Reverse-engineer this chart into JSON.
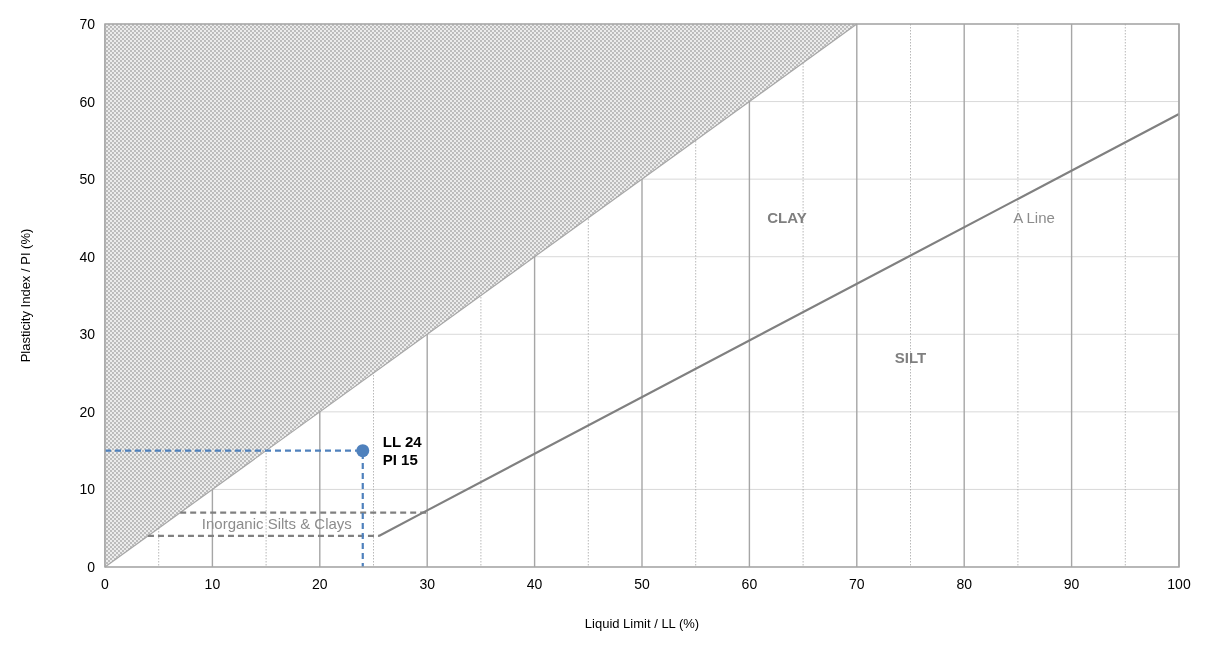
{
  "chart_data": {
    "type": "line",
    "xlabel": "Liquid Limit / LL (%)",
    "ylabel": "Plasticity Index / PI (%)",
    "xlim": [
      0,
      100
    ],
    "ylim": [
      0,
      70
    ],
    "xticks": [
      0,
      {
        "value": 5,
        "label": null
      },
      10,
      {
        "value": 15,
        "label": null
      },
      20,
      {
        "value": 25,
        "label": null
      },
      30,
      {
        "value": 35,
        "label": null
      },
      40,
      {
        "value": 45,
        "label": null
      },
      50,
      {
        "value": 55,
        "label": null
      },
      60,
      {
        "value": 65,
        "label": null
      },
      70,
      {
        "value": 75,
        "label": null
      },
      80,
      {
        "value": 85,
        "label": null
      },
      90,
      {
        "value": 95,
        "label": null
      },
      100
    ],
    "yticks": [
      0,
      10,
      20,
      30,
      40,
      50,
      60,
      70
    ],
    "grid": true,
    "series": [
      {
        "type": "area",
        "color": "#a6a6a6",
        "x": [
          0,
          70
        ],
        "values": [
          0,
          70
        ]
      },
      {
        "color": "#808080",
        "x": [
          25.5,
          30,
          100
        ],
        "values": [
          4,
          7.3,
          58.4
        ],
        "line_style": "solid"
      },
      {
        "color": "#808080",
        "x": [
          4,
          25.5
        ],
        "values": [
          4,
          4
        ],
        "line_style": "dashed"
      },
      {
        "color": "#808080",
        "x": [
          7,
          30
        ],
        "values": [
          7,
          7
        ],
        "line_style": "dashed"
      },
      {
        "color": "#4f81bd",
        "x": [
          0,
          24,
          24
        ],
        "values": [
          15,
          15,
          0
        ],
        "line_style": "dashed"
      },
      {
        "type": "scatter",
        "color": "#4f81bd",
        "x": [
          24
        ],
        "values": [
          15
        ],
        "marker": "circle"
      }
    ],
    "annotations": [
      "CLAY",
      "SILT",
      "A Line",
      "Inorganic Silts & Clays",
      {
        "text": "LL 24\nPI 15",
        "x": 24,
        "y": 15
      }
    ]
  }
}
